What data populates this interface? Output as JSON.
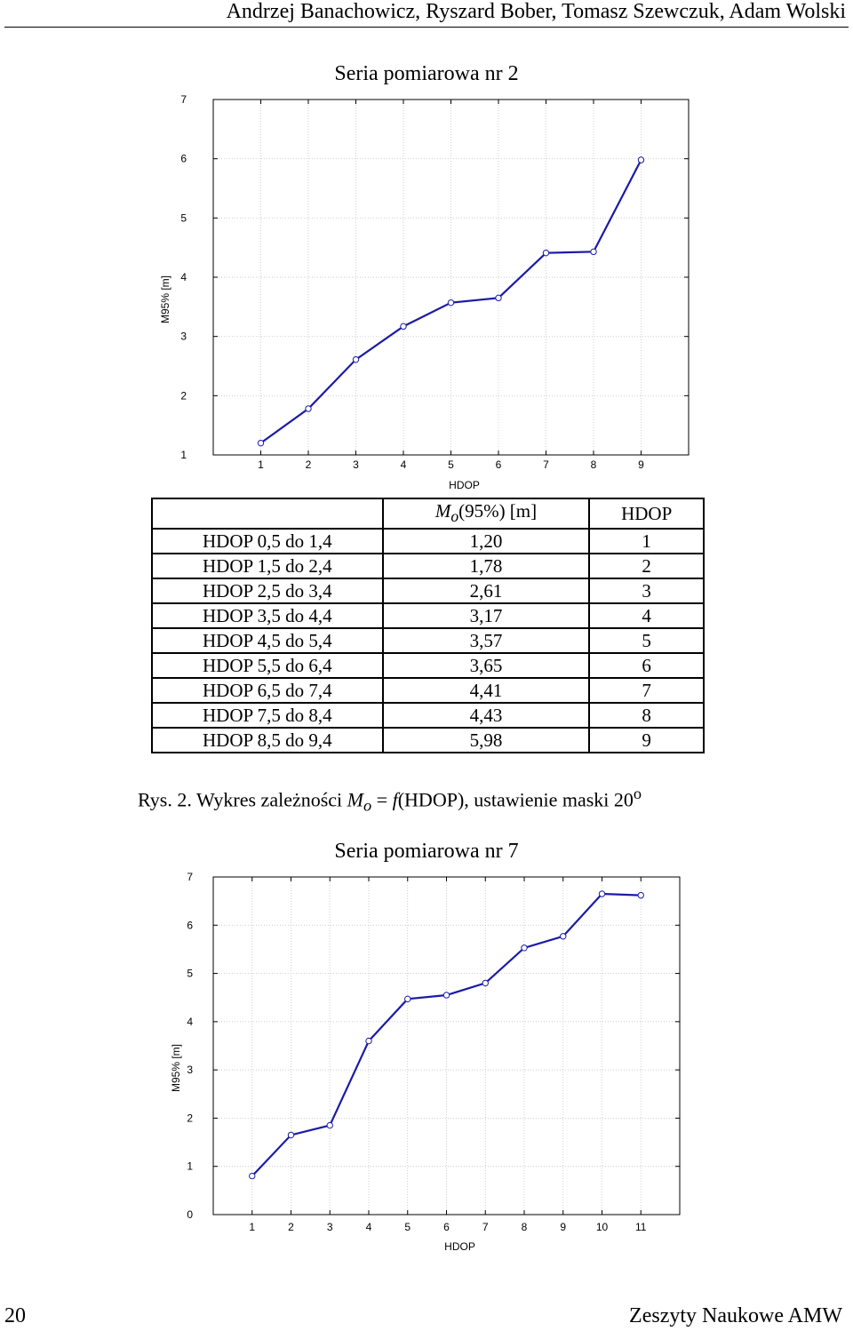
{
  "header": {
    "authors": "Andrzej Banachowicz, Ryszard Bober, Tomasz Szewczuk, Adam Wolski"
  },
  "chart_data": [
    {
      "type": "line",
      "title": "Seria pomiarowa nr 2",
      "xlabel": "HDOP",
      "ylabel": "M95% [m]",
      "x": [
        1,
        2,
        3,
        4,
        5,
        6,
        7,
        8,
        9
      ],
      "y": [
        1.2,
        1.78,
        2.61,
        3.17,
        3.57,
        3.65,
        4.41,
        4.43,
        5.98
      ],
      "xlim": [
        0,
        10
      ],
      "ylim": [
        1,
        7
      ],
      "xticks": [
        "1",
        "2",
        "3",
        "4",
        "5",
        "6",
        "7",
        "8",
        "9"
      ],
      "yticks": [
        "1",
        "2",
        "3",
        "4",
        "5",
        "6",
        "7"
      ],
      "grid": true,
      "line_color": "#1a1aa8"
    },
    {
      "type": "line",
      "title": "Seria pomiarowa nr 7",
      "xlabel": "HDOP",
      "ylabel": "M95% [m]",
      "x": [
        1,
        2,
        3,
        4,
        5,
        6,
        7,
        8,
        9,
        10,
        11
      ],
      "y": [
        0.8,
        1.65,
        1.85,
        3.6,
        4.47,
        4.55,
        4.8,
        5.53,
        5.77,
        6.65,
        6.62
      ],
      "xlim": [
        0,
        12
      ],
      "ylim": [
        0,
        7
      ],
      "xticks": [
        "1",
        "2",
        "3",
        "4",
        "5",
        "6",
        "7",
        "8",
        "9",
        "10",
        "11"
      ],
      "yticks": [
        "0",
        "1",
        "2",
        "3",
        "4",
        "5",
        "6",
        "7"
      ],
      "grid": true,
      "line_color": "#1a1aa8"
    }
  ],
  "table": {
    "col_m_prefix": "M",
    "col_m_sub": "o",
    "col_m_suffix": "(95%) [m]",
    "col_hdop": "HDOP",
    "rows": [
      {
        "label": "HDOP 0,5 do 1,4",
        "m": "1,20",
        "hdop": "1"
      },
      {
        "label": "HDOP 1,5 do 2,4",
        "m": "1,78",
        "hdop": "2"
      },
      {
        "label": "HDOP 2,5 do 3,4",
        "m": "2,61",
        "hdop": "3"
      },
      {
        "label": "HDOP 3,5 do 4,4",
        "m": "3,17",
        "hdop": "4"
      },
      {
        "label": "HDOP 4,5 do 5,4",
        "m": "3,57",
        "hdop": "5"
      },
      {
        "label": "HDOP 5,5 do 6,4",
        "m": "3,65",
        "hdop": "6"
      },
      {
        "label": "HDOP 6,5 do 7,4",
        "m": "4,41",
        "hdop": "7"
      },
      {
        "label": "HDOP 7,5 do 8,4",
        "m": "4,43",
        "hdop": "8"
      },
      {
        "label": "HDOP 8,5 do 9,4",
        "m": "5,98",
        "hdop": "9"
      }
    ]
  },
  "caption": {
    "prefix": "Rys. 2. Wykres zależności ",
    "m": "M",
    "m_sub": "o",
    "eq": " = ",
    "f": "f",
    "mid": "(HDOP), ustawienie maski 20",
    "sup": "o"
  },
  "footer": {
    "page_number": "20",
    "journal": "Zeszyty Naukowe AMW"
  }
}
